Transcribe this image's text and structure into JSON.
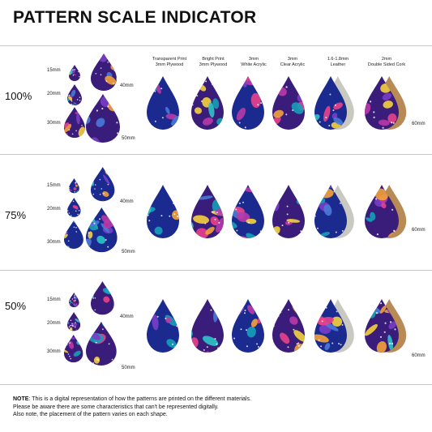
{
  "title": "PATTERN SCALE INDICATOR",
  "size_labels": {
    "s15": "15mm",
    "s20": "20mm",
    "s30": "30mm",
    "s40": "40mm",
    "s50": "50mm",
    "s60": "60mm"
  },
  "materials": [
    {
      "line1": "Transparent Print",
      "line2": "3mm Plywood"
    },
    {
      "line1": "Bright Print",
      "line2": "3mm Plywood"
    },
    {
      "line1": "3mm",
      "line2": "White Acrylic"
    },
    {
      "line1": "3mm",
      "line2": "Clear Acrylic"
    },
    {
      "line1": "1.6-1.8mm",
      "line2": "Leather"
    },
    {
      "line1": "2mm",
      "line2": "Double Sided Cork"
    }
  ],
  "rows": [
    {
      "scale": "100%"
    },
    {
      "scale": "75%"
    },
    {
      "scale": "50%"
    }
  ],
  "note": {
    "label": "NOTE",
    "line1": ": This is a digital representation of how the patterns are printed on the different materials.",
    "line2": "Please be aware there are some characteristics that can't be represented digitally.",
    "line3": "Also note, the placement of the pattern varies on each shape."
  },
  "palette": [
    "#1b2a8f",
    "#3a1d7a",
    "#16a0b8",
    "#e8428c",
    "#f4a23a",
    "#f5d23c",
    "#7a3ec8",
    "#2ec4c8",
    "#b93aa8",
    "#4a7ad8"
  ]
}
